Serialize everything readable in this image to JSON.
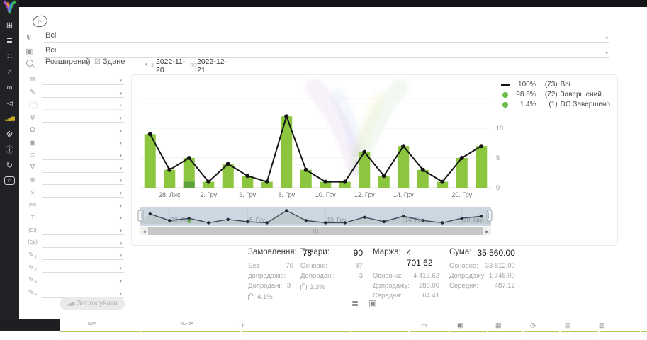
{
  "ui": {
    "caret": "▾"
  },
  "sidebar": {
    "items": [
      {
        "name": "dashboard-icon",
        "glyph": "⊞",
        "cls": "s-ic"
      },
      {
        "name": "orders-list-icon",
        "glyph": "≣",
        "cls": "s-ic"
      },
      {
        "name": "customers-icon",
        "glyph": "∷",
        "cls": "s-ic"
      },
      {
        "name": "store-icon",
        "glyph": "⌂",
        "cls": "s-ic"
      },
      {
        "name": "delivery-icon",
        "glyph": "∞",
        "cls": "s-ic"
      },
      {
        "name": "marketing-icon",
        "glyph": "◅",
        "cls": "s-ic"
      },
      {
        "name": "analytics-icon",
        "glyph": "▂▄▆",
        "cls": "s-ic active bars"
      },
      {
        "name": "settings-icon",
        "glyph": "⚙",
        "cls": "s-ic"
      },
      {
        "name": "info-icon",
        "glyph": "ⓘ",
        "cls": "s-ic"
      },
      {
        "name": "sync-icon",
        "glyph": "↻",
        "cls": "s-ic"
      },
      {
        "name": "video-help-icon",
        "glyph": "▷",
        "cls": "s-ic boxed"
      }
    ]
  },
  "play_hint_glyph": "▷",
  "filters": {
    "category_icon": "⋔",
    "category_value": "Всі",
    "product_icon": "▣",
    "product_value": "Всі",
    "mode_label": "Розширений",
    "date_type_icon": "☑",
    "date_type_label": "Здане",
    "from_label": "з",
    "from_value": "2022-11-20",
    "to_label": "по",
    "to_value": "2022-12-21",
    "apply_icon_glyph": "▂▄▆",
    "apply_label": "Застосувати",
    "rows": [
      {
        "name": "country-filter-icon",
        "glyph": "⊚",
        "row_cls": "f-row",
        "ic_cls": "f-ic"
      },
      {
        "name": "source-filter-icon",
        "glyph": "✎",
        "row_cls": "f-row",
        "ic_cls": "f-ic"
      },
      {
        "name": "unknown-filter-icon",
        "glyph": "?",
        "row_cls": "f-row dim",
        "ic_cls": "f-ic circ"
      },
      {
        "name": "structure-filter-icon",
        "glyph": "⋔",
        "row_cls": "f-row",
        "ic_cls": "f-ic flip"
      },
      {
        "name": "manager-filter-icon",
        "glyph": "Ω",
        "row_cls": "f-row",
        "ic_cls": "f-ic"
      },
      {
        "name": "product-filter-icon",
        "glyph": "▣",
        "row_cls": "f-row",
        "ic_cls": "f-ic"
      },
      {
        "name": "payment-filter-icon",
        "glyph": "▭",
        "row_cls": "f-row",
        "ic_cls": "f-ic"
      },
      {
        "name": "funnel-filter-icon",
        "glyph": "∇",
        "row_cls": "f-row",
        "ic_cls": "f-ic"
      },
      {
        "name": "network-filter-icon",
        "glyph": "⊕",
        "row_cls": "f-row",
        "ic_cls": "f-ic"
      },
      {
        "name": "utm-source-filter-icon",
        "glyph": "{S}",
        "row_cls": "f-row",
        "ic_cls": "f-ic tag"
      },
      {
        "name": "utm-medium-filter-icon",
        "glyph": "{M}",
        "row_cls": "f-row",
        "ic_cls": "f-ic tag"
      },
      {
        "name": "utm-term-filter-icon",
        "glyph": "{T}",
        "row_cls": "f-row",
        "ic_cls": "f-ic tag"
      },
      {
        "name": "utm-content-filter-icon",
        "glyph": "{Ct}",
        "row_cls": "f-row",
        "ic_cls": "f-ic tag"
      },
      {
        "name": "utm-campaign-filter-icon",
        "glyph": "{Cp}",
        "row_cls": "f-row",
        "ic_cls": "f-ic tag"
      },
      {
        "name": "custom-field-1-filter-icon",
        "glyph": "✎₁",
        "row_cls": "f-row",
        "ic_cls": "f-ic"
      },
      {
        "name": "custom-field-2-filter-icon",
        "glyph": "✎₂",
        "row_cls": "f-row",
        "ic_cls": "f-ic"
      },
      {
        "name": "custom-field-3-filter-icon",
        "glyph": "✎₃",
        "row_cls": "f-row",
        "ic_cls": "f-ic"
      },
      {
        "name": "custom-field-4-filter-icon",
        "glyph": "✎₄",
        "row_cls": "f-row",
        "ic_cls": "f-ic"
      }
    ]
  },
  "legend": {
    "items": [
      {
        "marker_cls": "mk mk-line",
        "pct": "100%",
        "count": "(73)",
        "label": "Всі"
      },
      {
        "marker_cls": "mk mk-dot",
        "pct": "98.6%",
        "count": "(72)",
        "label": "Завершений"
      },
      {
        "marker_cls": "mk mk-dot",
        "pct": "1.4%",
        "count": "(1)",
        "label": "DO Завершено"
      }
    ]
  },
  "chart_data": {
    "type": "bar+line",
    "bar_count": 18,
    "series": [
      {
        "name": "Всі",
        "type": "line",
        "color": "#151515",
        "values": [
          9,
          3,
          5,
          1,
          4,
          2,
          1,
          12,
          3,
          1,
          1,
          6,
          2,
          7,
          3,
          1,
          5,
          7
        ]
      },
      {
        "name": "Завершений",
        "type": "bar",
        "color": "#8cc63f",
        "values": [
          9,
          3,
          4,
          1,
          4,
          2,
          1,
          12,
          3,
          1,
          1,
          6,
          2,
          7,
          3,
          1,
          5,
          7
        ]
      },
      {
        "name": "DO Завершено",
        "type": "bar-overlay",
        "color": "#5ba23e",
        "values": [
          0,
          0,
          1,
          0,
          0,
          0,
          0,
          0,
          0,
          0,
          0,
          0,
          0,
          0,
          0,
          0,
          0,
          0
        ]
      }
    ],
    "ticks": [
      {
        "i": 1,
        "label": "28. Лис"
      },
      {
        "i": 3,
        "label": "2. Гру"
      },
      {
        "i": 5,
        "label": "6. Гру"
      },
      {
        "i": 7,
        "label": "8. Гру"
      },
      {
        "i": 9,
        "label": "10. Гру"
      },
      {
        "i": 11,
        "label": "12. Гру"
      },
      {
        "i": 13,
        "label": "14. Гру"
      },
      {
        "i": 16,
        "label": "20. Гру"
      }
    ],
    "brush_ticks": [
      {
        "i": 1,
        "label": "28. Лис"
      },
      {
        "i": 5,
        "label": "6. Гру"
      },
      {
        "i": 9,
        "label": "10. Гру"
      },
      {
        "i": 13,
        "label": "14. Гру"
      },
      {
        "i": 16,
        "label": "20. Гру"
      }
    ],
    "yticks": [
      0,
      5,
      10
    ],
    "ylim": [
      0,
      17
    ],
    "grid": true,
    "legend_position": "top-right"
  },
  "stats": {
    "columns": [
      {
        "title": "Замовлення:",
        "value": "73",
        "rows": [
          {
            "label": "Без допродажів:",
            "value": "70"
          },
          {
            "label": "Допродані:",
            "value": "3"
          }
        ],
        "footer_cls": "col-foot",
        "footer_value": "4.1%"
      },
      {
        "title": "Товари:",
        "value": "90",
        "rows": [
          {
            "label": "Основні:",
            "value": "87"
          },
          {
            "label": "Допродані:",
            "value": "3"
          }
        ],
        "footer_cls": "col-foot",
        "footer_value": "3.3%"
      },
      {
        "title": "Маржа:",
        "value": "4 701.62",
        "rows": [
          {
            "label": "Основна:",
            "value": "4 413.62"
          },
          {
            "label": "Допродажу:",
            "value": "288.00"
          },
          {
            "label": "Середня:",
            "value": "64.41"
          }
        ],
        "footer_cls": "col-foot none",
        "footer_value": ""
      },
      {
        "title": "Сума:",
        "value": "35 560.00",
        "rows": [
          {
            "label": "Основна:",
            "value": "33 812.00"
          },
          {
            "label": "Допродажу:",
            "value": "1 748.00"
          },
          {
            "label": "Середня:",
            "value": "487.12"
          }
        ],
        "footer_cls": "col-foot none",
        "footer_value": ""
      }
    ]
  },
  "view_toggles": [
    {
      "name": "list-view-toggle",
      "glyph": "≣"
    },
    {
      "name": "product-view-toggle",
      "glyph": "▣"
    }
  ],
  "bottom": {
    "icons": [
      {
        "name": "id-column-icon",
        "text": "ID≡",
        "style": "left:124px;font-size:7px"
      },
      {
        "name": "external-id-column-icon",
        "text": "ID-o≡",
        "style": "left:256px;font-size:7px"
      },
      {
        "name": "bag-column-icon",
        "text": "⊔",
        "style": "left:337px"
      },
      {
        "name": "money-column-icon",
        "text": "▭",
        "style": "left:594px"
      },
      {
        "name": "product-column-icon",
        "text": "▣",
        "style": "left:645px"
      },
      {
        "name": "date-column-icon",
        "text": "▦",
        "style": "left:699px"
      },
      {
        "name": "time-column-icon",
        "text": "◷",
        "style": "left:748px"
      },
      {
        "name": "paid-date-column-icon",
        "text": "▤",
        "style": "left:797px"
      },
      {
        "name": "shipped-date-column-icon",
        "text": "▧",
        "style": "left:845px"
      }
    ],
    "cells": [
      {
        "style": "width:112px"
      },
      {
        "style": "width:140px"
      },
      {
        "style": "width:153px"
      },
      {
        "style": "width:80px"
      },
      {
        "style": "width:55px"
      },
      {
        "style": "width:52px"
      },
      {
        "style": "width:48px"
      },
      {
        "style": "width:50px"
      },
      {
        "style": "width:53px"
      },
      {
        "style": "width:57px"
      },
      {
        "style": "width:24px"
      }
    ]
  }
}
